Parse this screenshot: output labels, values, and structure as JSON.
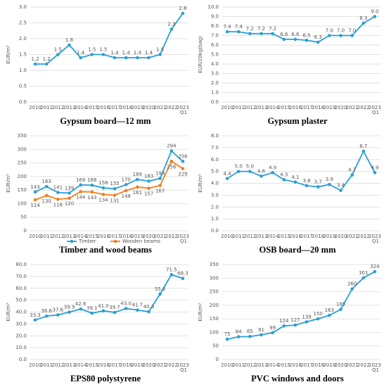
{
  "chart_data": [
    {
      "type": "line",
      "title": "Gypsum board—12 mm",
      "ylabel": "EUR/m²",
      "grid": true,
      "categories": [
        "2010",
        "2011",
        "2012",
        "2013",
        "2014",
        "2015",
        "2016",
        "2017",
        "2018",
        "2019",
        "2020",
        "2021",
        "2022",
        "2023 Q1"
      ],
      "series": [
        {
          "color": "#2a9fd6",
          "values": [
            1.2,
            1.2,
            1.5,
            1.8,
            1.4,
            1.5,
            1.5,
            1.4,
            1.4,
            1.4,
            1.4,
            1.5,
            2.3,
            2.8
          ],
          "value_labels": [
            "1.2",
            "1.2",
            "1.5",
            "1.8",
            "1.4",
            "1.5",
            "1.5",
            "1.4",
            "1.4",
            "1.4",
            "1.4",
            "1.5",
            "2.3",
            "2.8"
          ]
        }
      ],
      "ylim": [
        0,
        3
      ],
      "yticks": [
        {
          "value": 0,
          "label": "0.0"
        },
        0.5,
        {
          "value": 1,
          "label": "1.0"
        },
        1.5,
        {
          "value": 2,
          "label": "2.0"
        },
        2.5,
        {
          "value": 3,
          "label": "3.0"
        }
      ]
    },
    {
      "type": "line",
      "title": "Gypsum plaster",
      "ylabel": "EUR/20kg(bag)",
      "grid": true,
      "categories": [
        "2010",
        "2011",
        "2012",
        "2013",
        "2014",
        "2015",
        "2016",
        "2017",
        "2018",
        "2019",
        "2020",
        "2021",
        "2022",
        "2023 Q1"
      ],
      "series": [
        {
          "color": "#2a9fd6",
          "values": [
            7.4,
            7.4,
            7.2,
            7.2,
            7.2,
            6.6,
            6.6,
            6.5,
            6.3,
            7.0,
            7.0,
            7.0,
            8.3,
            9.0
          ],
          "value_labels": [
            "7.4",
            "7.4",
            "7.2",
            "7.2",
            "7.2",
            "6.6",
            "6.6",
            "6.5",
            "6.3",
            "7.0",
            "7.0",
            "7.0",
            "8.3",
            "9.0"
          ]
        }
      ],
      "ylim": [
        0,
        10
      ],
      "yticks": [
        {
          "value": 0,
          "label": "0.0"
        },
        {
          "value": 1,
          "label": "1.0"
        },
        {
          "value": 2,
          "label": "2.0"
        },
        {
          "value": 3,
          "label": "3.0"
        },
        {
          "value": 4,
          "label": "4.0"
        },
        {
          "value": 5,
          "label": "5.0"
        },
        {
          "value": 6,
          "label": "6.0"
        },
        {
          "value": 7,
          "label": "7.0"
        },
        {
          "value": 8,
          "label": "8.0"
        },
        {
          "value": 9,
          "label": "9.0"
        },
        {
          "value": 10,
          "label": "10.0"
        }
      ]
    },
    {
      "type": "line",
      "title": "Timber and wood beams",
      "ylabel": "EUR/m³",
      "grid": true,
      "categories": [
        "2010",
        "2011",
        "2012",
        "2013",
        "2014",
        "2015",
        "2016",
        "2017",
        "2018",
        "2019",
        "2020",
        "2021",
        "2022",
        "2023 Q1"
      ],
      "series": [
        {
          "name": "Timber",
          "color": "#2a9fd6",
          "values": [
            143,
            163,
            141,
            139,
            169,
            168,
            158,
            155,
            170,
            189,
            183,
            193,
            294,
            256
          ]
        },
        {
          "name": "Wooden beams",
          "color": "#f07f1e",
          "values": [
            114,
            130,
            116,
            120,
            144,
            143,
            134,
            131,
            148,
            161,
            157,
            167,
            256,
            229
          ]
        }
      ],
      "ylim": [
        0,
        350
      ],
      "yticks": [
        0,
        50,
        100,
        150,
        200,
        250,
        300,
        350
      ],
      "legend": "bottom"
    },
    {
      "type": "line",
      "title": "OSB board—20 mm",
      "ylabel": "EUR/m²",
      "grid": true,
      "categories": [
        "2010",
        "2011",
        "2012",
        "2013",
        "2014",
        "2015",
        "2016",
        "2017",
        "2018",
        "2019",
        "2020",
        "2021",
        "2022",
        "2023 Q1"
      ],
      "series": [
        {
          "color": "#2a9fd6",
          "values": [
            4.4,
            5.0,
            5.0,
            4.6,
            4.9,
            4.3,
            4.1,
            3.8,
            3.7,
            3.9,
            3.4,
            4.7,
            6.7,
            4.9
          ],
          "value_labels": [
            "4.4",
            "5.0",
            "5.0",
            "4.6",
            "4.9",
            "4.3",
            "4.1",
            "3.8",
            "3.7",
            "3.9",
            "3.4",
            "4.7",
            "6.7",
            "4.9"
          ]
        }
      ],
      "ylim": [
        0,
        8
      ],
      "yticks": [
        {
          "value": 0,
          "label": "0.0"
        },
        {
          "value": 1,
          "label": "1.0"
        },
        {
          "value": 2,
          "label": "2.0"
        },
        {
          "value": 3,
          "label": "3.0"
        },
        {
          "value": 4,
          "label": "4.0"
        },
        {
          "value": 5,
          "label": "5.0"
        },
        {
          "value": 6,
          "label": "6.0"
        },
        {
          "value": 7,
          "label": "7.0"
        },
        {
          "value": 8,
          "label": "8.0"
        }
      ]
    },
    {
      "type": "line",
      "title": "EPS80 polystyrene",
      "ylabel": "EUR/m³",
      "grid": true,
      "categories": [
        "2010",
        "2011",
        "2012",
        "2013",
        "2014",
        "2015",
        "2016",
        "2017",
        "2018",
        "2019",
        "2020",
        "2021",
        "2022",
        "2023 Q1"
      ],
      "series": [
        {
          "color": "#2a9fd6",
          "values": [
            33.3,
            36.6,
            37.6,
            39.9,
            42.6,
            39.1,
            41.0,
            39.7,
            43.0,
            41.7,
            40.3,
            55.2,
            71.5,
            68.3
          ],
          "value_labels": [
            "33.3",
            "36.6",
            "37.6",
            "39.9",
            "42.6",
            "39.1",
            "41.0",
            "39.7",
            "43.0",
            "41.7",
            "40.3",
            "55.2",
            "71.5",
            "68.3"
          ]
        }
      ],
      "ylim": [
        0,
        80
      ],
      "yticks": [
        {
          "value": 0,
          "label": "0.0"
        },
        {
          "value": 10,
          "label": "10.0"
        },
        {
          "value": 20,
          "label": "20.0"
        },
        {
          "value": 30,
          "label": "30.0"
        },
        {
          "value": 40,
          "label": "40.0"
        },
        {
          "value": 50,
          "label": "50.0"
        },
        {
          "value": 60,
          "label": "60.0"
        },
        {
          "value": 70,
          "label": "70.0"
        },
        {
          "value": 80,
          "label": "80.0"
        }
      ]
    },
    {
      "type": "line",
      "title": "PVC windows and doors",
      "ylabel": "EUR/m²",
      "grid": true,
      "categories": [
        "2010",
        "2011",
        "2012",
        "2013",
        "2014",
        "2015",
        "2016",
        "2017",
        "2018",
        "2019",
        "2020",
        "2021",
        "2022",
        "2023 Q1"
      ],
      "series": [
        {
          "color": "#2a9fd6",
          "values": [
            75,
            84,
            85,
            91,
            99,
            124,
            127,
            139,
            150,
            163,
            185,
            260,
            301,
            324
          ]
        }
      ],
      "ylim": [
        0,
        350
      ],
      "yticks": [
        0,
        50,
        100,
        150,
        200,
        250,
        300,
        350
      ]
    }
  ]
}
